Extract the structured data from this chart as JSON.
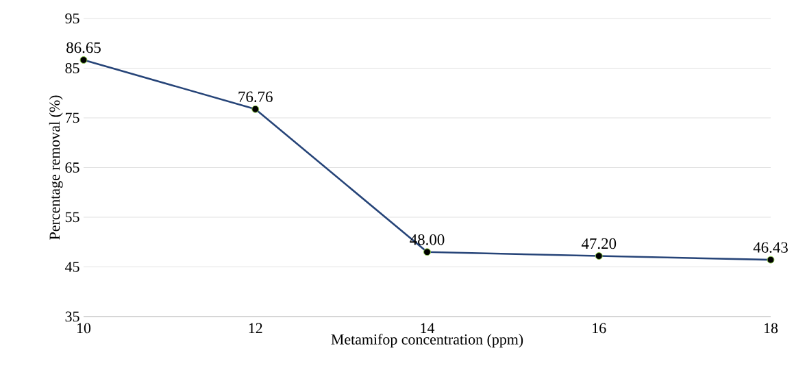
{
  "chart_data": {
    "type": "line",
    "xlabel": "Metamifop concentration (ppm)",
    "ylabel": "Percentage removal (%)",
    "x": [
      10,
      12,
      14,
      16,
      18
    ],
    "series": [
      {
        "color": "#264478",
        "values": [
          86.65,
          76.76,
          48.0,
          47.2,
          46.43
        ],
        "value_labels": [
          "86.65",
          "76.76",
          "48.00",
          "47.20",
          "46.43"
        ]
      }
    ],
    "xlim": [
      10,
      18
    ],
    "xticks": [
      10,
      12,
      14,
      16,
      18
    ],
    "ylim": [
      35,
      95
    ],
    "yticks": [
      35,
      45,
      55,
      65,
      75,
      85,
      95
    ],
    "grid": "y",
    "marker": "circle",
    "line_style": "solid"
  }
}
